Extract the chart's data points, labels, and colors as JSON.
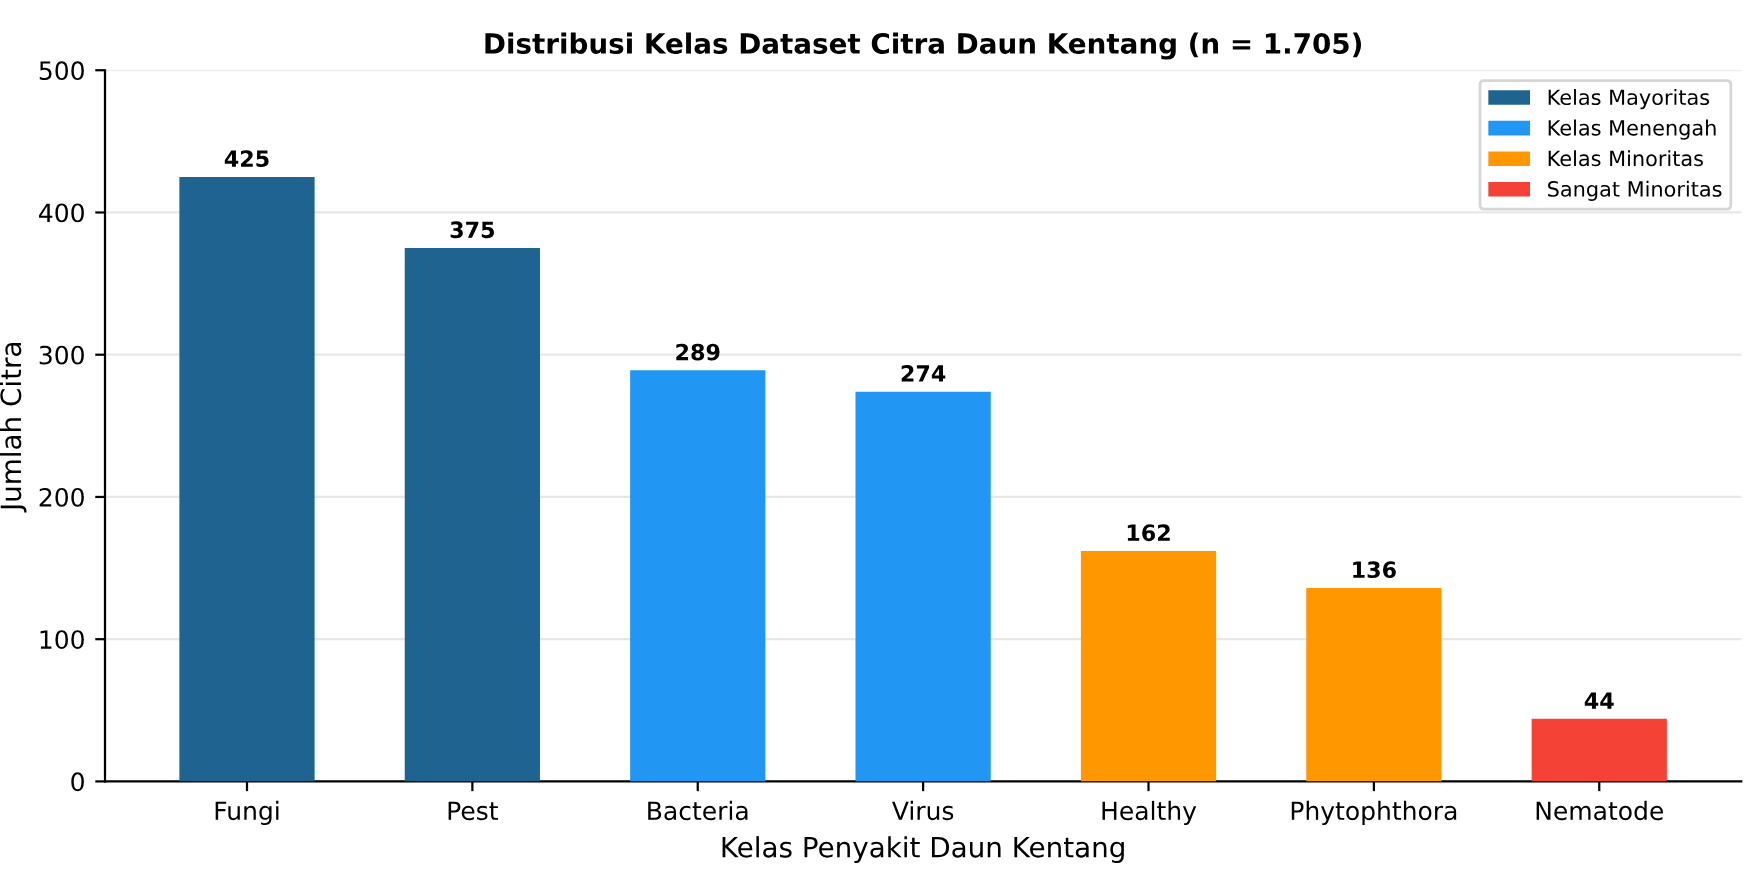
{
  "chart_data": {
    "type": "bar",
    "title": "Distribusi Kelas Dataset Citra Daun Kentang (n = 1.705)",
    "xlabel": "Kelas Penyakit Daun Kentang",
    "ylabel": "Jumlah Citra",
    "categories": [
      "Fungi",
      "Pest",
      "Bacteria",
      "Virus",
      "Healthy",
      "Phytophthora",
      "Nematode"
    ],
    "series": [
      {
        "name": "Kelas Mayoritas",
        "color": "#1f6391",
        "values": [
          425,
          375,
          null,
          null,
          null,
          null,
          null
        ]
      },
      {
        "name": "Kelas Menengah",
        "color": "#2196f3",
        "values": [
          null,
          null,
          289,
          274,
          null,
          null,
          null
        ]
      },
      {
        "name": "Kelas Minoritas",
        "color": "#ff9800",
        "values": [
          null,
          null,
          null,
          null,
          162,
          136,
          null
        ]
      },
      {
        "name": "Sangat Minoritas",
        "color": "#f44336",
        "values": [
          null,
          null,
          null,
          null,
          null,
          null,
          44
        ]
      }
    ],
    "ylim": [
      0,
      500
    ],
    "yticks": [
      0,
      100,
      200,
      300,
      400,
      500
    ],
    "grid": "y",
    "legend": "top right",
    "data_labels": true
  }
}
